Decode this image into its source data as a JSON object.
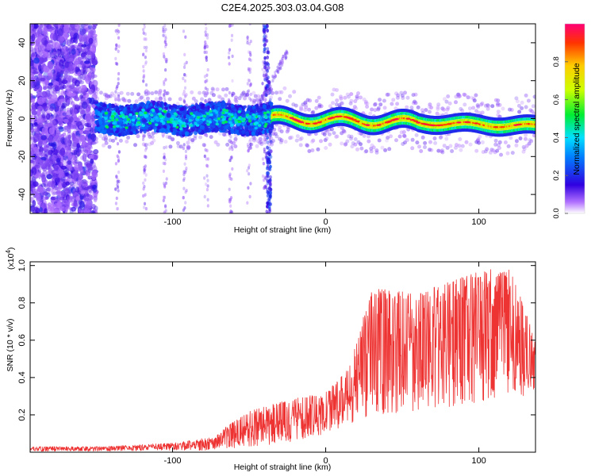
{
  "title": "C2E4.2025.303.03.04.G08",
  "chart_data": [
    {
      "type": "heatmap",
      "xlabel": "Height of straight line (km)",
      "ylabel": "Frequency (Hz)",
      "xlim": [
        -193,
        137
      ],
      "ylim": [
        -50,
        50
      ],
      "xticks": [
        -100,
        0,
        100
      ],
      "yticks": [
        -40,
        -20,
        0,
        20,
        40
      ],
      "colorbar": {
        "label": "Normalized spectral amplitude",
        "range": [
          0,
          1
        ],
        "ticks": [
          "0.0",
          "0.2",
          "0.4",
          "0.6",
          "0.8"
        ],
        "tick_values": [
          0,
          0.2,
          0.4,
          0.6,
          0.8
        ]
      },
      "description_regions": [
        {
          "x_range": [
            -193,
            -150
          ],
          "content": "scattered noise, amplitude 0.05-0.25"
        },
        {
          "x_range": [
            -150,
            -35
          ],
          "freq_center": 0,
          "freq_halfwidth": 7,
          "amplitude": [
            0.15,
            0.45
          ]
        },
        {
          "x_range": [
            -35,
            137
          ],
          "freq_center_trend": [
            0,
            -4
          ],
          "amplitude": [
            0.5,
            1.0
          ]
        }
      ]
    },
    {
      "type": "line",
      "xlabel": "Height of straight line (km)",
      "ylabel": "SNR (10 * v/v)",
      "multiplier_label": "(x10",
      "multiplier_exp": "4",
      "multiplier_close": ")",
      "xlim": [
        -193,
        137
      ],
      "ylim": [
        0,
        1.02
      ],
      "xticks": [
        -100,
        0,
        100
      ],
      "yticks": [
        0.2,
        0.4,
        0.6,
        0.8,
        1.0
      ],
      "ytick_labels": [
        "0.2",
        "0.4",
        "0.6",
        "0.8",
        "1.0"
      ],
      "color": "#ee3333",
      "envelope": [
        {
          "x": -193,
          "low": 0.005,
          "high": 0.03
        },
        {
          "x": -145,
          "low": 0.005,
          "high": 0.03
        },
        {
          "x": -100,
          "low": 0.01,
          "high": 0.05
        },
        {
          "x": -75,
          "low": 0.01,
          "high": 0.08
        },
        {
          "x": -50,
          "low": 0.03,
          "high": 0.22
        },
        {
          "x": -25,
          "low": 0.05,
          "high": 0.28
        },
        {
          "x": 0,
          "low": 0.1,
          "high": 0.32
        },
        {
          "x": 15,
          "low": 0.15,
          "high": 0.45
        },
        {
          "x": 30,
          "low": 0.2,
          "high": 0.88
        },
        {
          "x": 60,
          "low": 0.22,
          "high": 0.85
        },
        {
          "x": 90,
          "low": 0.25,
          "high": 0.95
        },
        {
          "x": 120,
          "low": 0.3,
          "high": 1.0
        },
        {
          "x": 137,
          "low": 0.3,
          "high": 0.6
        }
      ]
    }
  ]
}
